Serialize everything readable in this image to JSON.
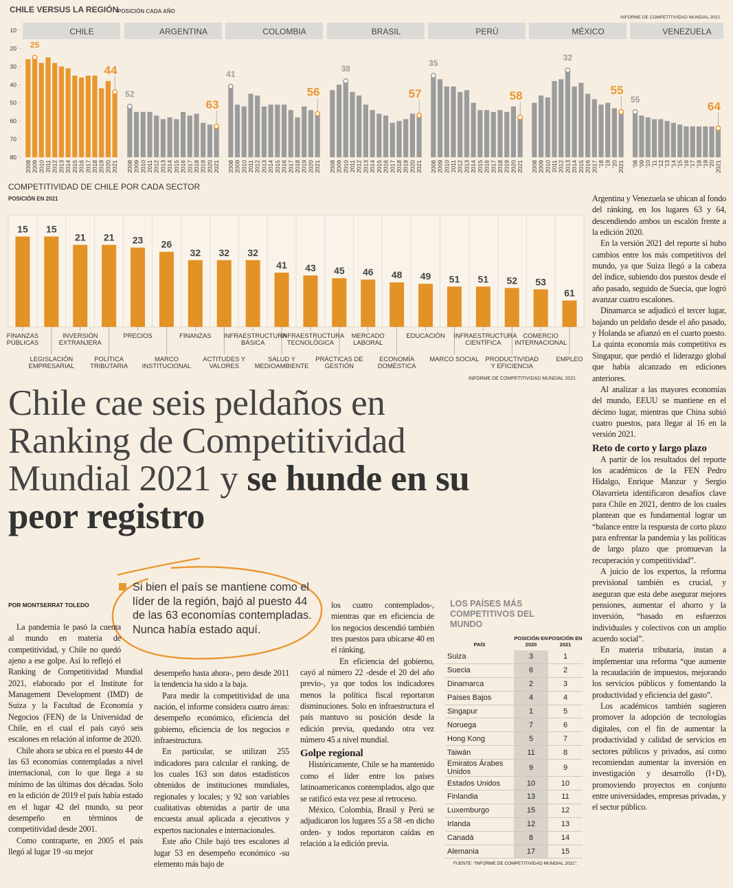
{
  "regional_chart": {
    "title": "CHILE VERSUS LA REGIÓN",
    "subtitle": "POSICIÓN CADA AÑO",
    "source": "INFORME DE COMPETITIVIDAD MUNDIAL 2021",
    "ylim": [
      80,
      10
    ],
    "yticks": [
      10,
      20,
      30,
      40,
      50,
      60,
      70,
      80
    ],
    "accent": "#e8972f",
    "countries": [
      {
        "name": "CHILE",
        "color": "#e8972f",
        "years": [
          "2008",
          "2009",
          "2010",
          "2011",
          "2012",
          "2013",
          "2014",
          "2015",
          "2016",
          "2017",
          "2018",
          "2019",
          "2020",
          "2021"
        ],
        "values": [
          26,
          25,
          28,
          25,
          28,
          30,
          31,
          35,
          36,
          35,
          35,
          42,
          38,
          44
        ],
        "highlight": [
          1,
          13
        ]
      },
      {
        "name": "ARGENTINA",
        "color": "#9c9c9c",
        "years": [
          "2008",
          "2009",
          "2010",
          "2011",
          "2012",
          "2013",
          "2014",
          "2015",
          "2016",
          "2017",
          "2018",
          "2019",
          "2020",
          "2021"
        ],
        "values": [
          52,
          55,
          55,
          55,
          57,
          59,
          58,
          59,
          55,
          57,
          56,
          61,
          62,
          63
        ],
        "highlight": [
          0,
          13
        ]
      },
      {
        "name": "COLOMBIA",
        "color": "#9c9c9c",
        "years": [
          "2008",
          "2009",
          "2010",
          "2011",
          "2012",
          "2013",
          "2014",
          "2015",
          "2016",
          "2017",
          "2018",
          "2019",
          "2020",
          "2021"
        ],
        "values": [
          41,
          51,
          52,
          45,
          46,
          52,
          51,
          51,
          51,
          54,
          58,
          52,
          54,
          56
        ],
        "highlight": [
          0,
          13
        ]
      },
      {
        "name": "BRASIL",
        "color": "#9c9c9c",
        "years": [
          "2008",
          "2009",
          "2010",
          "2011",
          "2012",
          "2013",
          "2014",
          "2015",
          "2016",
          "2017",
          "2018",
          "2019",
          "2020",
          "2021"
        ],
        "values": [
          43,
          40,
          38,
          44,
          46,
          51,
          54,
          56,
          57,
          61,
          60,
          59,
          56,
          57
        ],
        "highlight": [
          2,
          13
        ]
      },
      {
        "name": "PERÚ",
        "color": "#9c9c9c",
        "years": [
          "2008",
          "2009",
          "2010",
          "2011",
          "2012",
          "2013",
          "2014",
          "2015",
          "2016",
          "2017",
          "2018",
          "2019",
          "2020",
          "2021"
        ],
        "values": [
          35,
          37,
          41,
          41,
          44,
          43,
          50,
          54,
          54,
          55,
          54,
          55,
          52,
          58
        ],
        "highlight": [
          0,
          13
        ]
      },
      {
        "name": "MÉXICO",
        "color": "#9c9c9c",
        "years": [
          "2008",
          "2009",
          "2010",
          "2011",
          "2012",
          "2013",
          "2014",
          "2015",
          "2016",
          "2017",
          "'18",
          "'19",
          "'20",
          "2021"
        ],
        "values": [
          50,
          46,
          47,
          38,
          37,
          32,
          41,
          39,
          45,
          48,
          51,
          50,
          53,
          55
        ],
        "highlight": [
          5,
          13
        ]
      },
      {
        "name": "VENEZUELA",
        "color": "#9c9c9c",
        "years": [
          "'08",
          "'09",
          "'10",
          "'11",
          "'12",
          "'13",
          "'14",
          "'15",
          "'16",
          "'17",
          "'18",
          "'19",
          "'20",
          "2021"
        ],
        "values": [
          55,
          57,
          58,
          59,
          59,
          60,
          61,
          62,
          63,
          63,
          63,
          63,
          63,
          64
        ],
        "highlight": [
          0,
          13
        ]
      }
    ]
  },
  "sector_chart": {
    "title": "COMPETITIVIDAD DE CHILE POR CADA SECTOR",
    "subtitle": "POSICIÓN EN 2021",
    "source": "INFORME DE COMPETITIVIDAD MUNDIAL 2021",
    "color": "#e39226",
    "ylim": [
      80,
      0
    ],
    "categories": [
      "FINANZAS PÚBLICAS",
      "LEGISLACIÓN EMPRESARIAL",
      "INVERSIÓN EXTRANJERA",
      "POLÍTICA TRIBUTARIA",
      "PRECIOS",
      "MARCO INSTITUCIONAL",
      "FINANZAS",
      "ACTITUDES Y VALORES",
      "INFRAESTRUCTURA BÁSICA",
      "SALUD Y MEDIOAMBIENTE",
      "INFRAESTRUCTURA TECNOLÓGICA",
      "PRÁCTICAS DE GESTIÓN",
      "MERCADO LABORAL",
      "ECONOMÍA DOMÉSTICA",
      "EDUCACIÓN",
      "MARCO SOCIAL",
      "INFRAESTRUCTURA CIENTÍFICA",
      "PRODUCTIVIDAD Y EFICIENCIA",
      "COMERCIO INTERNACIONAL",
      "EMPLEO"
    ],
    "values": [
      15,
      15,
      21,
      21,
      23,
      26,
      32,
      32,
      32,
      41,
      43,
      45,
      46,
      48,
      49,
      51,
      51,
      52,
      53,
      61
    ]
  },
  "headline": {
    "regular": "Chile cae seis peldaños en Ranking de Competitividad Mundial 2021 y",
    "bold": "se hunde en su peor registro"
  },
  "byline": "POR MONTSERRAT TOLEDO",
  "pullquote": "Si bien el país se mantiene como el líder de la región, bajó al puesto 44 de las 63 economías contempladas. Nunca había estado aquí.",
  "columns": [
    [
      {
        "p": "La pandemia le pasó la cuenta al mundo en materia de competitividad, y Chile no quedó ajeno a ese golpe. Así lo reflejó el Ranking de Competitividad Mundial 2021, elaborado por el Institute for Management Development (IMD) de Suiza y la Facultad de Economía y Negocios (FEN) de la Universidad de Chile, en el cual el país cayó seis escalones en relación al informe de 2020."
      },
      {
        "p": "Chile ahora se ubica en el puesto 44 de las 63 economías contempladas a nivel internacional, con lo que llega a su mínimo de las últimas dos décadas. Solo en la edición de 2019 el país había estado en el lugar 42 del mundo, su peor desempeño en términos de competitividad desde 2001."
      },
      {
        "p": "Como contraparte, en 2005 el país llegó al lugar 19 -su mejor"
      }
    ],
    [
      {
        "p": "desempeño hasta ahora-, pero desde 2011 la tendencia ha sido a la baja."
      },
      {
        "p": "Para medir la competitividad de una nación, el informe considera cuatro áreas: desempeño económico, eficiencia del gobierno, eficiencia de los negocios e infraestructura."
      },
      {
        "p": "En particular, se utilizan 255 indicadores para calcular el ranking, de los cuales 163 son datos estadísticos obtenidos de instituciones mundiales, regionales y locales; y 92 son variables cualitativas obtenidas a partir de una encuesta anual aplicada a ejecutivos y expertos nacionales e internacionales."
      },
      {
        "p": "Este año Chile bajó tres escalones al lugar 53 en desempeño económico -su elemento más bajo de"
      }
    ],
    [
      {
        "p": "los cuatro contemplados-, mientras que en eficiencia de los negocios descendió también tres puestos para ubicarse 40 en el ránking."
      },
      {
        "p": "En eficiencia del gobierno, cayó al número 22 -desde el 20 del año previo-, ya que todos los indicadores menos la política fiscal reportaron disminuciones. Solo en infraestructura el país mantuvo su posición desde la edición previa, quedando otra vez número 45 a nivel mundial."
      },
      {
        "h": "Golpe regional"
      },
      {
        "p": "Históricamente, Chile se ha mantenido como el líder entre los países latinoamericanos contemplados, algo que se ratificó esta vez pese al retroceso."
      },
      {
        "p": "México, Colombia, Brasil y Perú se adjudicaron los lugares 55 a 58 -en dicho orden- y todos reportaron caídas en relación a la edición previa."
      }
    ],
    [
      {
        "p": "Argentina y Venezuela se ubican al fondo del ránking, en los lugares 63 y 64, descendiendo ambos un escalón frente a la edición 2020."
      },
      {
        "p": "En la versión 2021 del reporte sí hubo cambios entre los más competitivos del mundo, ya que Suiza llegó a la cabeza del índice, subiendo dos puestos desde el año pasado, seguido de Suecia, que logró avanzar cuatro escalones."
      },
      {
        "p": "Dinamarca se adjudicó el tercer lugar, bajando un peldaño desde el año pasado, y Holanda se afianzó en el cuarto puesto. La quinta economía más competitiva es Singapur, que perdió el liderazgo global que había alcanzado en ediciones anteriores."
      },
      {
        "p": "Al analizar a las mayores economías del mundo, EEUU se mantiene en el décimo lugar, mientras que China subió cuatro puestos, para llegar al 16 en la versión 2021."
      },
      {
        "h": "Reto de corto y largo plazo"
      },
      {
        "p": "A partir de los resultados del reporte los académicos de la FEN Pedro Hidalgo, Enrique Manzur y Sergio Olavarrieta identificaron desafíos clave para Chile en 2021, dentro de los cuales plantean que es fundamental lograr un “balance entre la respuesta de corto plazo para enfrentar la pandemia y las políticas de largo plazo que promuevan la recuperación y competitividad”."
      },
      {
        "p": "A juicio de los expertos, la reforma previsional también es crucial, y aseguran que esta debe asegurar mejores pensiones, aumentar el ahorro y la inversión, “basado en esfuerzos individuales y colectivos con un amplio acuerdo social”."
      },
      {
        "p": "En materia tributaria, instan a implementar una reforma “que aumente la recaudación de impuestos, mejorando los servicios públicos y fomentando la productividad y eficiencia del gasto”."
      },
      {
        "p": "Los académicos también sugieren promover la adopción de tecnologías digitales, con el fin de aumentar la productividad y calidad de servicios en sectores públicos y privados, así como recomiendan aumentar la inversión en investigación y desarrollo (I+D), promoviendo proyectos en conjunto entre universidades, empresas privadas, y el sector público."
      }
    ]
  ],
  "table": {
    "title": "LOS PAÍSES MÁS COMPETITIVOS DEL MUNDO",
    "headers": [
      "PAÍS",
      "POSICIÓN EN 2020",
      "POSICIÓN EN 2021"
    ],
    "rows": [
      [
        "Suiza",
        3,
        1
      ],
      [
        "Suecia",
        6,
        2
      ],
      [
        "Dinamarca",
        2,
        3
      ],
      [
        "Países Bajos",
        4,
        4
      ],
      [
        "Singapur",
        1,
        5
      ],
      [
        "Noruega",
        7,
        6
      ],
      [
        "Hong Kong",
        5,
        7
      ],
      [
        "Taiwán",
        11,
        8
      ],
      [
        "Emiratos Árabes Unidos",
        9,
        9
      ],
      [
        "Estados Unidos",
        10,
        10
      ],
      [
        "Finlandia",
        13,
        11
      ],
      [
        "Luxemburgo",
        15,
        12
      ],
      [
        "Irlanda",
        12,
        13
      ],
      [
        "Canadá",
        8,
        14
      ],
      [
        "Alemania",
        17,
        15
      ]
    ],
    "source": "FUENTE: “INFORME DE COMPETITIVIDAD MUNDIAL 2021”."
  }
}
